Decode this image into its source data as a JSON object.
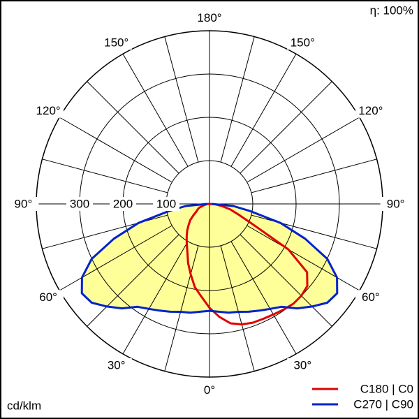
{
  "chart_data": {
    "type": "polar",
    "efficiency": "η: 100%",
    "unit": "cd/klm",
    "gamma": [
      -90,
      -85,
      -80,
      -75,
      -70,
      -65,
      -60,
      -55,
      -50,
      -45,
      -40,
      -35,
      -30,
      -25,
      -20,
      -15,
      -10,
      -5,
      0,
      5,
      10,
      15,
      20,
      25,
      30,
      35,
      40,
      45,
      50,
      55,
      60,
      65,
      70,
      75,
      80,
      85,
      90
    ],
    "series": [
      {
        "name": "C180 | C0",
        "color": "#e00000",
        "fill": null,
        "values": [
          0,
          5,
          10,
          15,
          25,
          30,
          35,
          45,
          58,
          68,
          80,
          92,
          105,
          121,
          145,
          168,
          195,
          215,
          240,
          262,
          280,
          288,
          292,
          293,
          295,
          298,
          301,
          300,
          295,
          275,
          210,
          108,
          70,
          50,
          30,
          15,
          0
        ]
      },
      {
        "name": "C270 | C90",
        "color": "#0022cc",
        "fill": "#ffff99",
        "values": [
          5,
          55,
          95,
          170,
          235,
          300,
          340,
          360,
          355,
          335,
          315,
          290,
          280,
          272,
          265,
          258,
          255,
          250,
          247,
          250,
          255,
          258,
          265,
          272,
          280,
          290,
          315,
          335,
          355,
          360,
          340,
          300,
          235,
          170,
          95,
          55,
          5
        ]
      }
    ],
    "rlim": [
      0,
      400
    ],
    "rticks": [
      100,
      200,
      300
    ],
    "angle_grid": [
      0,
      15,
      30,
      45,
      60,
      75,
      90,
      105,
      120,
      135,
      150,
      165,
      180
    ],
    "angle_ticks": [
      {
        "value": 0,
        "label": "0°"
      },
      {
        "value": 30,
        "label": "30°"
      },
      {
        "value": 60,
        "label": "60°"
      },
      {
        "value": 90,
        "label": "90°"
      },
      {
        "value": 120,
        "label": "120°"
      },
      {
        "value": 150,
        "label": "150°"
      },
      {
        "value": 180,
        "label": "180°"
      }
    ]
  }
}
